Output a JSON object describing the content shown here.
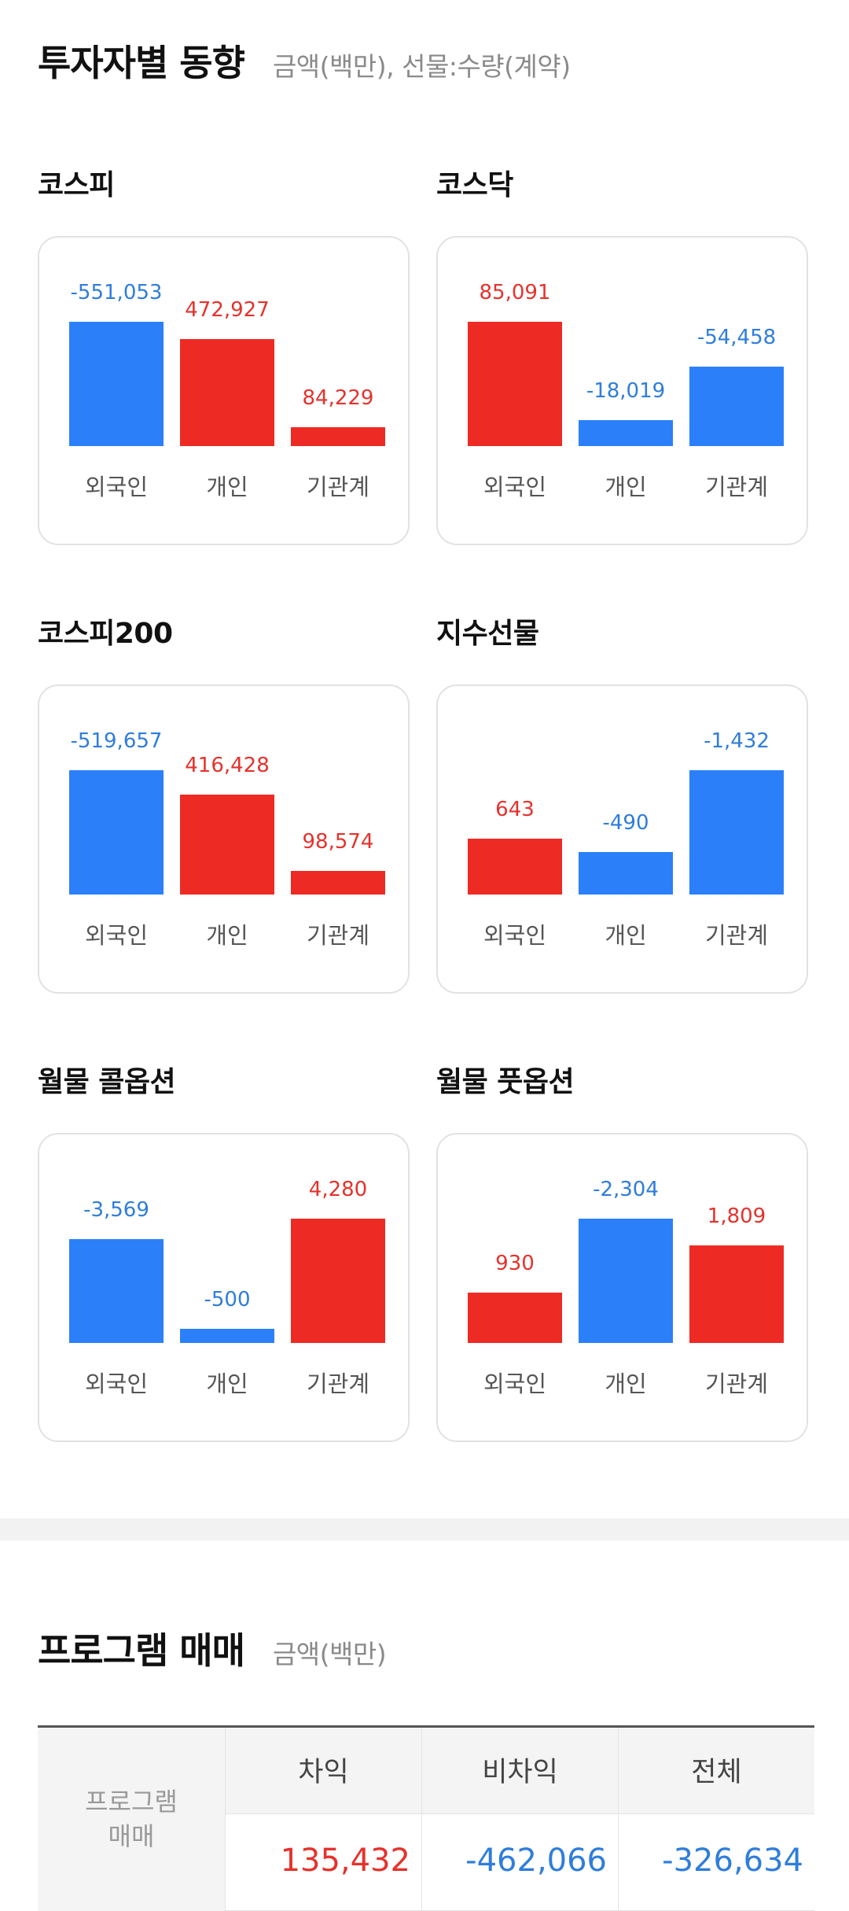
{
  "investor_trend": {
    "title": "투자자별 동향",
    "subtitle": "금액(백만), 선물:수량(계약)"
  },
  "colors": {
    "positive": "#ee2a24",
    "negative": "#2b80fa",
    "positive_text": "#e5322c",
    "negative_text": "#2f7ddb"
  },
  "categories": [
    "외국인",
    "개인",
    "기관계"
  ],
  "chart_data": [
    {
      "type": "bar",
      "title": "코스피",
      "categories": [
        "외국인",
        "개인",
        "기관계"
      ],
      "values": [
        -551053,
        472927,
        84229
      ],
      "labels": [
        "-551,053",
        "472,927",
        "84,229"
      ]
    },
    {
      "type": "bar",
      "title": "코스닥",
      "categories": [
        "외국인",
        "개인",
        "기관계"
      ],
      "values": [
        85091,
        -18019,
        -54458
      ],
      "labels": [
        "85,091",
        "-18,019",
        "-54,458"
      ]
    },
    {
      "type": "bar",
      "title": "코스피200",
      "categories": [
        "외국인",
        "개인",
        "기관계"
      ],
      "values": [
        -519657,
        416428,
        98574
      ],
      "labels": [
        "-519,657",
        "416,428",
        "98,574"
      ]
    },
    {
      "type": "bar",
      "title": "지수선물",
      "categories": [
        "외국인",
        "개인",
        "기관계"
      ],
      "values": [
        643,
        -490,
        -1432
      ],
      "labels": [
        "643",
        "-490",
        "-1,432"
      ]
    },
    {
      "type": "bar",
      "title": "월물 콜옵션",
      "categories": [
        "외국인",
        "개인",
        "기관계"
      ],
      "values": [
        -3569,
        -500,
        4280
      ],
      "labels": [
        "-3,569",
        "-500",
        "4,280"
      ]
    },
    {
      "type": "bar",
      "title": "월물 풋옵션",
      "categories": [
        "외국인",
        "개인",
        "기관계"
      ],
      "values": [
        930,
        -2304,
        1809
      ],
      "labels": [
        "930",
        "-2,304",
        "1,809"
      ]
    }
  ],
  "program_trading": {
    "title": "프로그램 매매",
    "subtitle": "금액(백만)",
    "row_label_line1": "프로그램",
    "row_label_line2": "매매",
    "columns": [
      "차익",
      "비차익",
      "전체"
    ],
    "values": [
      "135,432",
      "-462,066",
      "-326,634"
    ]
  }
}
